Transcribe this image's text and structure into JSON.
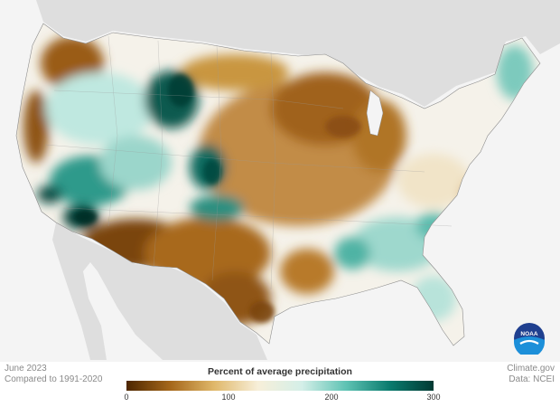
{
  "map": {
    "title": "Percent of average precipitation",
    "date_label": "June 2023",
    "comparison_label": "Compared to 1991-2020",
    "credit_site": "Climate.gov",
    "credit_data": "Data: NCEI",
    "logo_text": "NOAA",
    "legend": {
      "min": 0,
      "max": 300,
      "ticks": [
        "0",
        "100",
        "200",
        "300"
      ],
      "colors": [
        "#4d2600",
        "#a5671a",
        "#e0b86a",
        "#f7efd9",
        "#d4efe8",
        "#5fc3b4",
        "#0a7b6e",
        "#013a33"
      ]
    },
    "colors": {
      "land_outside": "#d9d9d9",
      "ocean": "#f4f4f4",
      "dry": "#a86c22",
      "wet": "#0f6b5f",
      "near_normal": "#f5f2ea"
    },
    "regions": [
      {
        "name": "pacific-northwest",
        "value": 40
      },
      {
        "name": "california-coast",
        "value": 45
      },
      {
        "name": "nevada-utah",
        "value": 250
      },
      {
        "name": "wyoming-montana",
        "value": 270
      },
      {
        "name": "colorado",
        "value": 240
      },
      {
        "name": "desert-southwest",
        "value": 20
      },
      {
        "name": "texas",
        "value": 35
      },
      {
        "name": "upper-midwest",
        "value": 45
      },
      {
        "name": "central-plains",
        "value": 40
      },
      {
        "name": "southeast",
        "value": 150
      },
      {
        "name": "great-lakes-east",
        "value": 110
      },
      {
        "name": "new-england",
        "value": 160
      },
      {
        "name": "florida",
        "value": 150
      }
    ]
  }
}
